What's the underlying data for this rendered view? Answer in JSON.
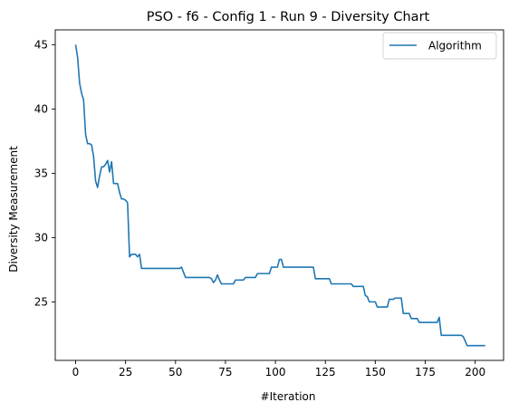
{
  "chart_data": {
    "type": "line",
    "title": "PSO - f6 - Config 1 - Run 9 - Diversity Chart",
    "xlabel": "#Iteration",
    "ylabel": "Diversity Measurement",
    "xlim": [
      -10.2,
      214.2
    ],
    "ylim": [
      20.45,
      46.15
    ],
    "xticks": [
      0,
      25,
      50,
      75,
      100,
      125,
      150,
      175,
      200
    ],
    "yticks": [
      25,
      30,
      35,
      40,
      45
    ],
    "grid": false,
    "legend_position": "top-right",
    "line_color": "#1f77b4",
    "series": [
      {
        "name": "Algorithm",
        "points": [
          [
            0,
            45.0
          ],
          [
            1,
            44.0
          ],
          [
            2,
            42.0
          ],
          [
            3,
            41.2
          ],
          [
            4,
            40.7
          ],
          [
            5,
            38.0
          ],
          [
            6,
            37.3
          ],
          [
            7,
            37.3
          ],
          [
            8,
            37.2
          ],
          [
            9,
            36.3
          ],
          [
            10,
            34.4
          ],
          [
            11,
            33.9
          ],
          [
            12,
            34.8
          ],
          [
            13,
            35.5
          ],
          [
            14,
            35.5
          ],
          [
            15,
            35.7
          ],
          [
            16,
            36.0
          ],
          [
            17,
            35.1
          ],
          [
            18,
            35.9
          ],
          [
            19,
            34.2
          ],
          [
            20,
            34.2
          ],
          [
            21,
            34.2
          ],
          [
            22,
            33.5
          ],
          [
            23,
            33.0
          ],
          [
            24,
            33.0
          ],
          [
            25,
            32.9
          ],
          [
            26,
            32.7
          ],
          [
            27,
            28.5
          ],
          [
            28,
            28.7
          ],
          [
            29,
            28.7
          ],
          [
            30,
            28.7
          ],
          [
            31,
            28.5
          ],
          [
            32,
            28.7
          ],
          [
            33,
            27.6
          ],
          [
            52,
            27.6
          ],
          [
            53,
            27.7
          ],
          [
            54,
            27.3
          ],
          [
            55,
            26.9
          ],
          [
            67,
            26.9
          ],
          [
            68,
            26.8
          ],
          [
            69,
            26.5
          ],
          [
            70,
            26.7
          ],
          [
            71,
            27.1
          ],
          [
            72,
            26.7
          ],
          [
            73,
            26.4
          ],
          [
            79,
            26.4
          ],
          [
            80,
            26.7
          ],
          [
            84,
            26.7
          ],
          [
            85,
            26.9
          ],
          [
            90,
            26.9
          ],
          [
            91,
            27.2
          ],
          [
            97,
            27.2
          ],
          [
            98,
            27.7
          ],
          [
            101,
            27.7
          ],
          [
            102,
            28.3
          ],
          [
            103,
            28.3
          ],
          [
            104,
            27.7
          ],
          [
            119,
            27.7
          ],
          [
            120,
            26.8
          ],
          [
            127,
            26.8
          ],
          [
            128,
            26.4
          ],
          [
            138,
            26.4
          ],
          [
            139,
            26.2
          ],
          [
            144,
            26.2
          ],
          [
            145,
            25.5
          ],
          [
            146,
            25.4
          ],
          [
            147,
            25.0
          ],
          [
            150,
            25.0
          ],
          [
            151,
            24.6
          ],
          [
            156,
            24.6
          ],
          [
            157,
            25.2
          ],
          [
            159,
            25.2
          ],
          [
            160,
            25.3
          ],
          [
            163,
            25.3
          ],
          [
            164,
            24.1
          ],
          [
            167,
            24.1
          ],
          [
            168,
            23.7
          ],
          [
            171,
            23.7
          ],
          [
            172,
            23.4
          ],
          [
            181,
            23.4
          ],
          [
            182,
            23.8
          ],
          [
            183,
            22.4
          ],
          [
            193,
            22.4
          ],
          [
            194,
            22.3
          ],
          [
            196,
            21.6
          ],
          [
            205,
            21.6
          ]
        ]
      }
    ]
  }
}
